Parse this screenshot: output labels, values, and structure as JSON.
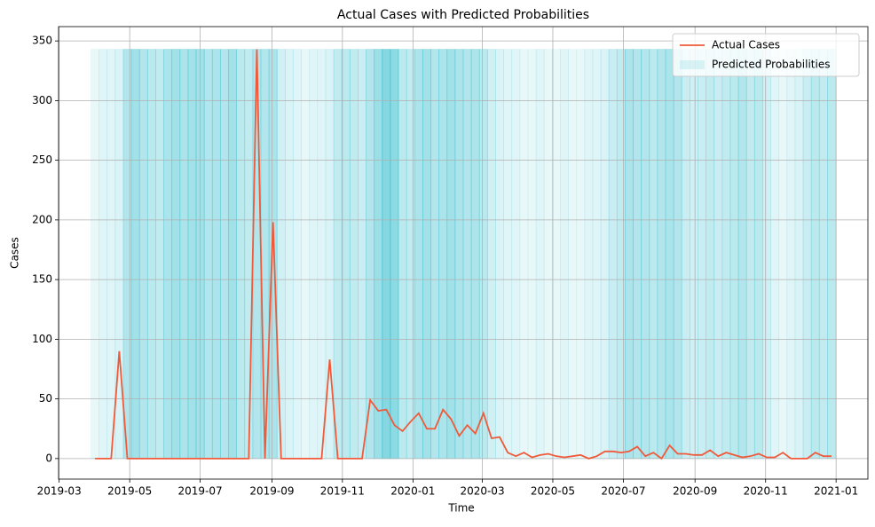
{
  "chart_data": {
    "type": "line",
    "title": "Actual Cases with Predicted Probabilities",
    "x_label": "Time",
    "y_label": "Cases",
    "xlim": [
      -4.5,
      95.5
    ],
    "xticks": [
      {
        "value": -4.43,
        "label": "2019-03"
      },
      {
        "value": 4.29,
        "label": "2019-05"
      },
      {
        "value": 13,
        "label": "2019-07"
      },
      {
        "value": 21.86,
        "label": "2019-09"
      },
      {
        "value": 30.57,
        "label": "2019-11"
      },
      {
        "value": 39.29,
        "label": "2020-01"
      },
      {
        "value": 47.86,
        "label": "2020-03"
      },
      {
        "value": 56.57,
        "label": "2020-05"
      },
      {
        "value": 65.29,
        "label": "2020-07"
      },
      {
        "value": 74.14,
        "label": "2020-09"
      },
      {
        "value": 82.86,
        "label": "2020-11"
      },
      {
        "value": 91.57,
        "label": "2021-01"
      }
    ],
    "ylim": [
      -17.2,
      362
    ],
    "yticks": [
      0,
      50,
      100,
      150,
      200,
      250,
      300,
      350
    ],
    "grid": true,
    "legend": "upper right",
    "series": [
      {
        "name": "Actual Cases",
        "type": "line",
        "color": "#f05a3a",
        "values": [
          0,
          0,
          0,
          90,
          0,
          0,
          0,
          0,
          0,
          0,
          0,
          0,
          0,
          0,
          0,
          0,
          0,
          0,
          0,
          0,
          343,
          0,
          198,
          0,
          0,
          0,
          0,
          0,
          0,
          83,
          0,
          0,
          0,
          0,
          49,
          40,
          41,
          28,
          23,
          31,
          38,
          25,
          25,
          41,
          33,
          19,
          28,
          21,
          38,
          17,
          18,
          5,
          2,
          5,
          1,
          3,
          4,
          2,
          1,
          2,
          3,
          0,
          2,
          6,
          6,
          5,
          6,
          10,
          2,
          5,
          0,
          11,
          4,
          4,
          3,
          3,
          7,
          2,
          5,
          3,
          1,
          2,
          4,
          1,
          1,
          5,
          0,
          0,
          0,
          5,
          2,
          2
        ]
      },
      {
        "name": "Predicted Probabilities",
        "type": "bar",
        "color": "#00acc1",
        "values": [
          0.15,
          0.2,
          0.2,
          0.25,
          0.5,
          0.6,
          0.5,
          0.45,
          0.4,
          0.55,
          0.6,
          0.55,
          0.6,
          0.6,
          0.5,
          0.55,
          0.5,
          0.6,
          0.45,
          0.4,
          0.5,
          0.5,
          0.55,
          0.3,
          0.25,
          0.2,
          0.15,
          0.2,
          0.2,
          0.25,
          0.4,
          0.45,
          0.4,
          0.35,
          0.5,
          0.65,
          0.8,
          0.75,
          0.45,
          0.4,
          0.55,
          0.6,
          0.5,
          0.55,
          0.6,
          0.55,
          0.5,
          0.55,
          0.45,
          0.3,
          0.25,
          0.2,
          0.2,
          0.15,
          0.15,
          0.2,
          0.15,
          0.15,
          0.2,
          0.15,
          0.15,
          0.2,
          0.2,
          0.25,
          0.35,
          0.4,
          0.55,
          0.5,
          0.5,
          0.45,
          0.5,
          0.55,
          0.5,
          0.35,
          0.3,
          0.35,
          0.4,
          0.35,
          0.4,
          0.45,
          0.5,
          0.4,
          0.45,
          0.3,
          0.2,
          0.15,
          0.2,
          0.25,
          0.35,
          0.45,
          0.4,
          0.45
        ]
      }
    ]
  }
}
